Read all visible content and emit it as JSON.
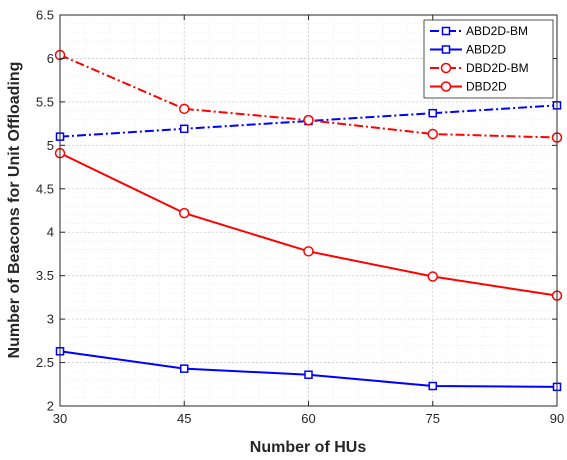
{
  "chart_data": {
    "type": "line",
    "title": "",
    "xlabel": "Number of HUs",
    "ylabel": "Number of Beacons for Unit Offloading",
    "x": [
      30,
      45,
      60,
      75,
      90
    ],
    "xlim": [
      30,
      90
    ],
    "ylim": [
      2,
      6.5
    ],
    "xticks": [
      "30",
      "45",
      "60",
      "75",
      "90"
    ],
    "yticks": [
      "2",
      "2.5",
      "3",
      "3.5",
      "4",
      "4.5",
      "5",
      "5.5",
      "6",
      "6.5"
    ],
    "grid": true,
    "legend_position": "top-right",
    "series": [
      {
        "name": "ABD2D-BM",
        "values": [
          5.1,
          5.19,
          5.28,
          5.37,
          5.46
        ],
        "color": "#0000ff",
        "line_style": "dash-dot",
        "marker": "square"
      },
      {
        "name": "ABD2D",
        "values": [
          2.63,
          2.43,
          2.36,
          2.23,
          2.22
        ],
        "color": "#0000ff",
        "line_style": "solid",
        "marker": "square"
      },
      {
        "name": "DBD2D-BM",
        "values": [
          6.04,
          5.42,
          5.29,
          5.13,
          5.09
        ],
        "color": "#ff0000",
        "line_style": "dash-dot",
        "marker": "circle"
      },
      {
        "name": "DBD2D",
        "values": [
          4.91,
          4.22,
          3.78,
          3.49,
          3.27
        ],
        "color": "#ff0000",
        "line_style": "solid",
        "marker": "circle"
      }
    ]
  }
}
